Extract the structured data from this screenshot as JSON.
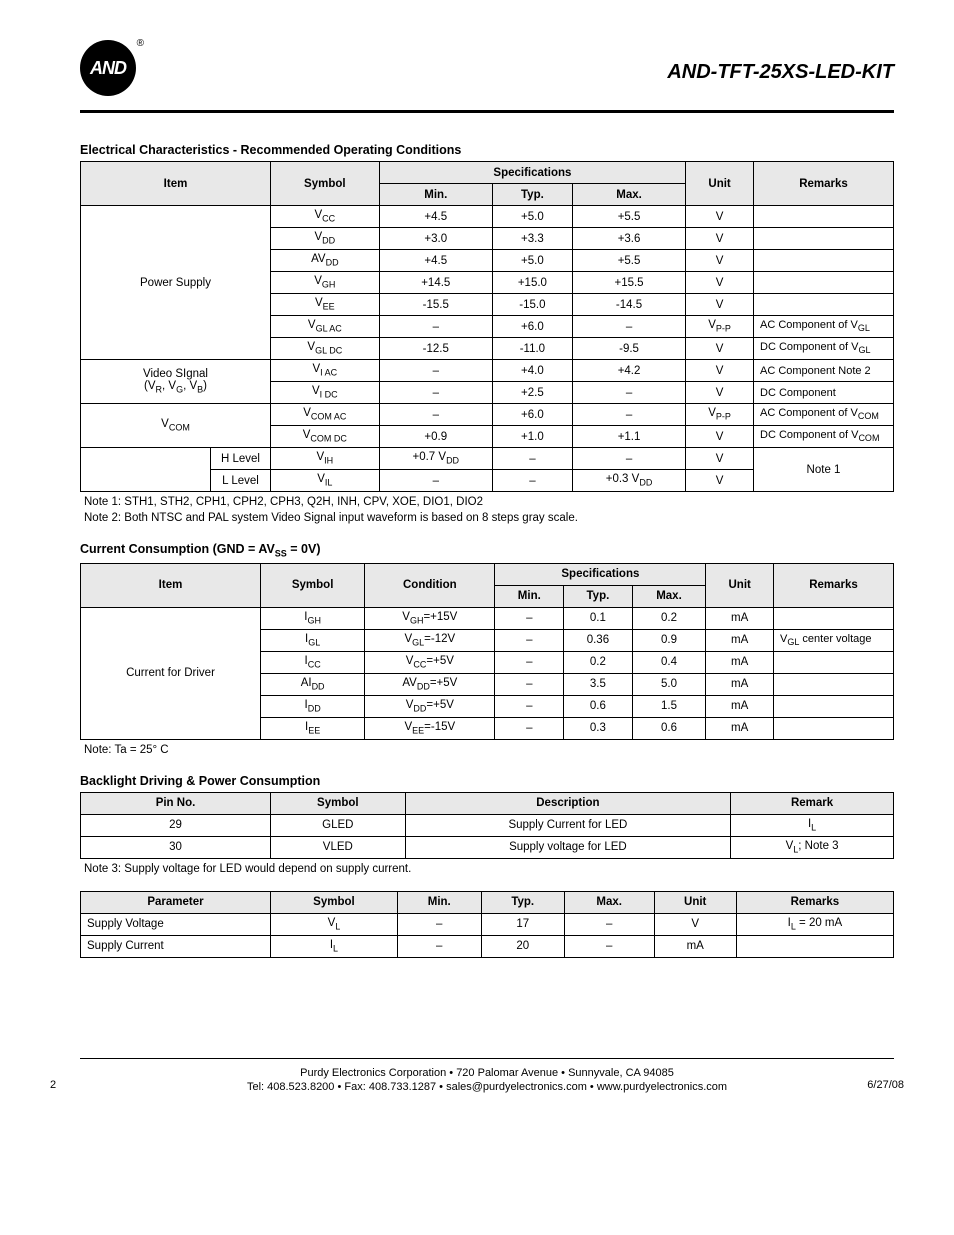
{
  "header": {
    "logo_text": "AND",
    "part_number": "AND-TFT-25XS-LED-KIT"
  },
  "section1": {
    "title": "Electrical Characteristics - Recommended Operating Conditions",
    "headers": {
      "item": "Item",
      "symbol": "Symbol",
      "spec": "Specifications",
      "min": "Min.",
      "typ": "Typ.",
      "max": "Max.",
      "unit": "Unit",
      "remarks": "Remarks"
    },
    "groups": [
      {
        "item": "Power Supply",
        "rows": [
          {
            "sym": "V",
            "sub": "CC",
            "min": "+4.5",
            "typ": "+5.0",
            "max": "+5.5",
            "unit": "V",
            "rem": ""
          },
          {
            "sym": "V",
            "sub": "DD",
            "min": "+3.0",
            "typ": "+3.3",
            "max": "+3.6",
            "unit": "V",
            "rem": ""
          },
          {
            "sym": "AV",
            "sub": "DD",
            "min": "+4.5",
            "typ": "+5.0",
            "max": "+5.5",
            "unit": "V",
            "rem": ""
          },
          {
            "sym": "V",
            "sub": "GH",
            "min": "+14.5",
            "typ": "+15.0",
            "max": "+15.5",
            "unit": "V",
            "rem": ""
          },
          {
            "sym": "V",
            "sub": "EE",
            "min": "-15.5",
            "typ": "-15.0",
            "max": "-14.5",
            "unit": "V",
            "rem": ""
          },
          {
            "sym": "V",
            "sub": "GL AC",
            "min": "–",
            "typ": "+6.0",
            "max": "–",
            "unit": "V",
            "usub": "P-P",
            "rem": "AC Component of V",
            "rsub": "GL"
          },
          {
            "sym": "V",
            "sub": "GL DC",
            "min": "-12.5",
            "typ": "-11.0",
            "max": "-9.5",
            "unit": "V",
            "rem": "DC Component of V",
            "rsub": "GL"
          }
        ]
      },
      {
        "item": "Video SIgnal",
        "item2": "(V_R, V_G, V_B)",
        "rows": [
          {
            "sym": "V",
            "sub": "I AC",
            "min": "–",
            "typ": "+4.0",
            "max": "+4.2",
            "unit": "V",
            "rem": "AC Component Note 2"
          },
          {
            "sym": "V",
            "sub": "I DC",
            "min": "–",
            "typ": "+2.5",
            "max": "–",
            "unit": "V",
            "rem": "DC Component"
          }
        ]
      },
      {
        "item": "V_COM",
        "rows": [
          {
            "sym": "V",
            "sub": "COM AC",
            "min": "–",
            "typ": "+6.0",
            "max": "–",
            "unit": "V",
            "usub": "P-P",
            "rem": "AC Component of V",
            "rsub": "COM"
          },
          {
            "sym": "V",
            "sub": "COM DC",
            "min": "+0.9",
            "typ": "+1.0",
            "max": "+1.1",
            "unit": "V",
            "rem": "DC Component of V",
            "rsub": "COM"
          }
        ]
      }
    ],
    "level_rows": [
      {
        "lvl": "H Level",
        "sym": "V",
        "sub": "IH",
        "min": "+0.7 V",
        "msub": "DD",
        "typ": "–",
        "max": "–",
        "unit": "V"
      },
      {
        "lvl": "L Level",
        "sym": "V",
        "sub": "IL",
        "min": "–",
        "typ": "–",
        "max": "+0.3 V",
        "xsub": "DD",
        "unit": "V"
      }
    ],
    "level_remark": "Note 1",
    "note1": "Note 1: STH1, STH2, CPH1, CPH2, CPH3, Q2H, INH, CPV, XOE, DIO1, DIO2",
    "note2": "Note 2: Both NTSC and PAL system Video Signal input waveform is based on 8 steps gray scale."
  },
  "section2": {
    "title_pre": "Current Consumption (GND = AV",
    "title_sub": "SS",
    "title_post": " = 0V)",
    "headers": {
      "item": "Item",
      "symbol": "Symbol",
      "condition": "Condition",
      "spec": "Specifications",
      "min": "Min.",
      "typ": "Typ.",
      "max": "Max.",
      "unit": "Unit",
      "remarks": "Remarks"
    },
    "group_item": "Current for Driver",
    "rows": [
      {
        "sym": "I",
        "sub": "GH",
        "cond": "V",
        "csub": "GH",
        "cval": "=+15V",
        "min": "–",
        "typ": "0.1",
        "max": "0.2",
        "unit": "mA",
        "rem": ""
      },
      {
        "sym": "I",
        "sub": "GL",
        "cond": "V",
        "csub": "GL",
        "cval": "=-12V",
        "min": "–",
        "typ": "0.36",
        "max": "0.9",
        "unit": "mA",
        "rem": "V",
        "rsub": "GL",
        "rtail": " center voltage"
      },
      {
        "sym": "I",
        "sub": "CC",
        "cond": "V",
        "csub": "CC",
        "cval": "=+5V",
        "min": "–",
        "typ": "0.2",
        "max": "0.4",
        "unit": "mA",
        "rem": ""
      },
      {
        "sym": "AI",
        "sub": "DD",
        "cond": "AV",
        "csub": "DD",
        "cval": "=+5V",
        "min": "–",
        "typ": "3.5",
        "max": "5.0",
        "unit": "mA",
        "rem": ""
      },
      {
        "sym": "I",
        "sub": "DD",
        "cond": "V",
        "csub": "DD",
        "cval": "=+5V",
        "min": "–",
        "typ": "0.6",
        "max": "1.5",
        "unit": "mA",
        "rem": ""
      },
      {
        "sym": "I",
        "sub": "EE",
        "cond": "V",
        "csub": "EE",
        "cval": "=-15V",
        "min": "–",
        "typ": "0.3",
        "max": "0.6",
        "unit": "mA",
        "rem": ""
      }
    ],
    "note": "Note:  Ta = 25° C"
  },
  "section3": {
    "title": "Backlight Driving & Power Consumption",
    "headers": {
      "pin": "Pin No.",
      "symbol": "Symbol",
      "desc": "Description",
      "remark": "Remark"
    },
    "rows": [
      {
        "pin": "29",
        "sym": "GLED",
        "desc": "Supply Current for LED",
        "rem": "I",
        "rsub": "L"
      },
      {
        "pin": "30",
        "sym": "VLED",
        "desc": "Supply voltage for LED",
        "rem": "V",
        "rsub": "L",
        "rtail": "; Note 3"
      }
    ],
    "note": "Note 3: Supply voltage for LED would depend on supply current."
  },
  "section4": {
    "headers": {
      "param": "Parameter",
      "symbol": "Symbol",
      "min": "Min.",
      "typ": "Typ.",
      "max": "Max.",
      "unit": "Unit",
      "remarks": "Remarks"
    },
    "rows": [
      {
        "param": "Supply Voltage",
        "sym": "V",
        "sub": "L",
        "min": "–",
        "typ": "17",
        "max": "–",
        "unit": "V",
        "rem": "I",
        "rsub": "L",
        "rtail": " = 20 mA"
      },
      {
        "param": "Supply Current",
        "sym": "I",
        "sub": "L",
        "min": "–",
        "typ": "20",
        "max": "–",
        "unit": "mA",
        "rem": ""
      }
    ]
  },
  "footer": {
    "line1": "Purdy Electronics Corporation  •  720 Palomar Avenue  •  Sunnyvale, CA 94085",
    "line2": "Tel: 408.523.8200  • Fax: 408.733.1287  •  sales@purdyelectronics.com  •  www.purdyelectronics.com",
    "page": "2",
    "date": "6/27/08"
  }
}
